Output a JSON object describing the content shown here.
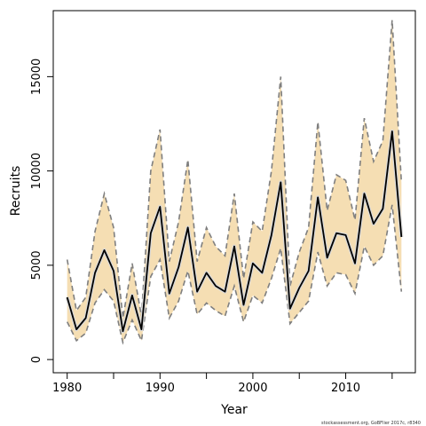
{
  "chart_data": {
    "type": "area",
    "xlabel": "Year",
    "ylabel": "Recruits",
    "xlim": [
      1978.5,
      2017.5
    ],
    "ylim": [
      -700,
      18500
    ],
    "x_ticks": [
      1980,
      1985,
      1990,
      1995,
      2000,
      2005,
      2010,
      2015
    ],
    "x_tick_labels": [
      "1980",
      "",
      "1990",
      "",
      "2000",
      "",
      "2010",
      ""
    ],
    "y_ticks": [
      0,
      5000,
      10000,
      15000
    ],
    "y_tick_labels": [
      "0",
      "5000",
      "10000",
      "15000"
    ],
    "grid": false,
    "x": [
      1980,
      1981,
      1982,
      1983,
      1984,
      1985,
      1986,
      1987,
      1988,
      1989,
      1990,
      1991,
      1992,
      1993,
      1994,
      1995,
      1996,
      1997,
      1998,
      1999,
      2000,
      2001,
      2002,
      2003,
      2004,
      2005,
      2006,
      2007,
      2008,
      2009,
      2010,
      2011,
      2012,
      2013,
      2014,
      2015,
      2016
    ],
    "series": [
      {
        "role": "estimate",
        "color": "#000000",
        "values": [
          3300,
          1600,
          2200,
          4600,
          5800,
          4700,
          1500,
          3400,
          1600,
          6700,
          8100,
          3500,
          4900,
          7000,
          3600,
          4600,
          3900,
          3600,
          6000,
          2900,
          5100,
          4600,
          6600,
          9400,
          2700,
          3800,
          4700,
          8600,
          5400,
          6700,
          6600,
          5100,
          8800,
          7200,
          8000,
          12100,
          6500
        ]
      },
      {
        "role": "upper-bound",
        "color": "#7f7f7f",
        "values": [
          5300,
          2600,
          3300,
          6800,
          8800,
          7000,
          2200,
          5100,
          2300,
          10000,
          12200,
          5200,
          7300,
          10600,
          5200,
          7000,
          6000,
          5500,
          8800,
          4300,
          7300,
          6800,
          10000,
          15000,
          3900,
          5700,
          7000,
          12600,
          7900,
          9800,
          9500,
          7400,
          12800,
          10500,
          11600,
          18000,
          9400
        ]
      },
      {
        "role": "lower-bound",
        "color": "#7f7f7f",
        "values": [
          2000,
          1000,
          1400,
          3000,
          3700,
          3100,
          900,
          2100,
          1000,
          4400,
          5300,
          2200,
          3100,
          4700,
          2400,
          3000,
          2600,
          2300,
          3900,
          2000,
          3400,
          3000,
          4300,
          5900,
          1900,
          2500,
          3100,
          5700,
          3900,
          4600,
          4500,
          3500,
          6000,
          5000,
          5500,
          8200,
          3600
        ]
      }
    ],
    "band_color": "#f5deb3"
  },
  "credit": "stockassessment.org, GoBFlier 2017c, r8340"
}
